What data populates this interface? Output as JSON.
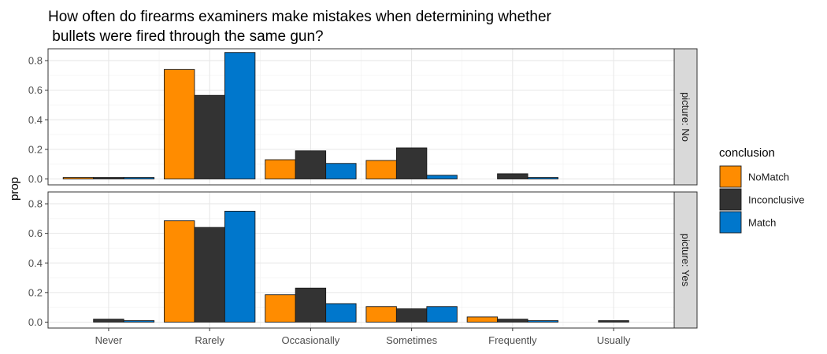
{
  "chart_data": {
    "type": "bar",
    "title_line1": "How often do firearms examiners make mistakes when determining whether",
    "title_line2": " bullets were fired through the same gun?",
    "xlabel": "",
    "ylabel": "prop",
    "ylim": [
      -0.04,
      0.88
    ],
    "yticks": [
      "0.0",
      "0.2",
      "0.4",
      "0.6",
      "0.8"
    ],
    "grid": true,
    "legend": {
      "title": "conclusion",
      "placement": "right"
    },
    "categories": [
      "Never",
      "Rarely",
      "Occasionally",
      "Sometimes",
      "Frequently",
      "Usually"
    ],
    "series_colors": {
      "NoMatch": "#FF8C00",
      "Inconclusive": "#333333",
      "Match": "#0077CC"
    },
    "facets": [
      {
        "label": "picture: No",
        "series": [
          {
            "name": "NoMatch",
            "values": [
              0.01,
              0.74,
              0.13,
              0.125,
              null,
              null
            ]
          },
          {
            "name": "Inconclusive",
            "values": [
              0.01,
              0.565,
              0.19,
              0.21,
              0.035,
              null
            ]
          },
          {
            "name": "Match",
            "values": [
              0.01,
              0.855,
              0.105,
              0.025,
              0.01,
              null
            ]
          }
        ]
      },
      {
        "label": "picture: Yes",
        "series": [
          {
            "name": "NoMatch",
            "values": [
              null,
              0.685,
              0.185,
              0.105,
              0.035,
              null
            ]
          },
          {
            "name": "Inconclusive",
            "values": [
              0.02,
              0.64,
              0.23,
              0.09,
              0.02,
              0.01
            ]
          },
          {
            "name": "Match",
            "values": [
              0.01,
              0.75,
              0.125,
              0.105,
              0.01,
              null
            ]
          }
        ]
      }
    ]
  }
}
